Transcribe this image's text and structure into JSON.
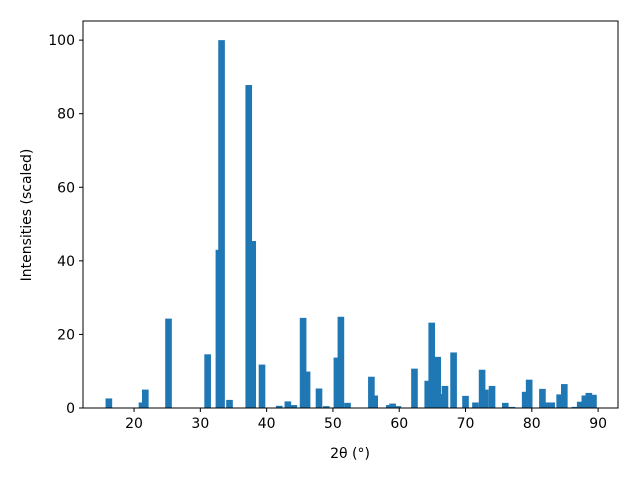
{
  "chart_data": {
    "type": "bar",
    "xlabel": "2θ (°)",
    "ylabel": "Intensities (scaled)",
    "x": [
      16.2,
      21.2,
      21.7,
      25.2,
      31.1,
      32.8,
      33.2,
      34.4,
      37.3,
      37.9,
      39.3,
      41.9,
      43.2,
      44.1,
      45.5,
      46.1,
      47.9,
      49.0,
      50.6,
      51.2,
      52.2,
      55.8,
      56.3,
      58.5,
      59.0,
      59.8,
      62.3,
      64.3,
      64.9,
      65.4,
      65.8,
      66.4,
      66.9,
      68.2,
      70.0,
      71.5,
      72.5,
      73.0,
      74.0,
      76.0,
      77.0,
      79.0,
      79.6,
      81.6,
      82.3,
      83.0,
      84.2,
      84.9,
      86.5,
      87.3,
      88.0,
      88.6,
      89.3
    ],
    "values": [
      2.6,
      1.5,
      5,
      24.3,
      14.6,
      43,
      100,
      2.2,
      87.8,
      45.4,
      11.8,
      0.6,
      1.8,
      0.8,
      24.5,
      9.9,
      5.3,
      0.5,
      13.7,
      24.8,
      1.4,
      8.5,
      3.4,
      0.8,
      1.2,
      0.5,
      10.7,
      7.4,
      23.2,
      12,
      13.9,
      3.8,
      6,
      15.1,
      3.3,
      1.5,
      10.4,
      5,
      6,
      1.4,
      0.3,
      4.4,
      7.7,
      5.2,
      1.5,
      1.5,
      3.7,
      6.5,
      0.3,
      1.7,
      3.4,
      4.1,
      3.6
    ],
    "bar_width": 1,
    "color": "#1f77b4",
    "xlim": [
      12.3,
      93.0
    ],
    "xticks": [
      20,
      30,
      40,
      50,
      60,
      70,
      80,
      90
    ],
    "ylim": [
      0,
      105.2
    ],
    "yticks": [
      0,
      20,
      40,
      60,
      80,
      100
    ]
  }
}
